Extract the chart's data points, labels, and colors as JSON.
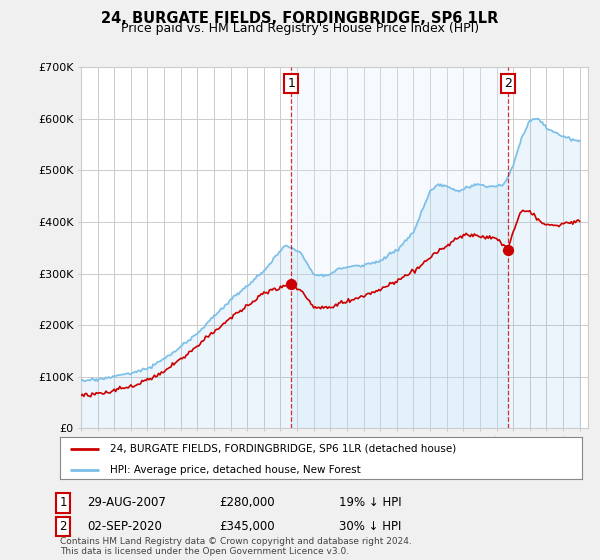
{
  "title": "24, BURGATE FIELDS, FORDINGBRIDGE, SP6 1LR",
  "subtitle": "Price paid vs. HM Land Registry's House Price Index (HPI)",
  "legend_line1": "24, BURGATE FIELDS, FORDINGBRIDGE, SP6 1LR (detached house)",
  "legend_line2": "HPI: Average price, detached house, New Forest",
  "footnote1": "Contains HM Land Registry data © Crown copyright and database right 2024.",
  "footnote2": "This data is licensed under the Open Government Licence v3.0.",
  "table_rows": [
    {
      "marker": "1",
      "date": "29-AUG-2007",
      "price": "£280,000",
      "hpi": "19% ↓ HPI"
    },
    {
      "marker": "2",
      "date": "02-SEP-2020",
      "price": "£345,000",
      "hpi": "30% ↓ HPI"
    }
  ],
  "hpi_color": "#7bbfe8",
  "hpi_fill_color": "#ddeeff",
  "price_color": "#cc0000",
  "sale1_year": 2007.64,
  "sale1_price": 280000,
  "sale2_year": 2020.67,
  "sale2_price": 345000,
  "ylim": [
    0,
    700000
  ],
  "yticks": [
    0,
    100000,
    200000,
    300000,
    400000,
    500000,
    600000,
    700000
  ],
  "ytick_labels": [
    "£0",
    "£100K",
    "£200K",
    "£300K",
    "£400K",
    "£500K",
    "£600K",
    "£700K"
  ],
  "start_year": 1995,
  "end_year": 2025,
  "background_color": "#f0f0f0",
  "plot_bg_color": "#ffffff",
  "grid_color": "#cccccc"
}
